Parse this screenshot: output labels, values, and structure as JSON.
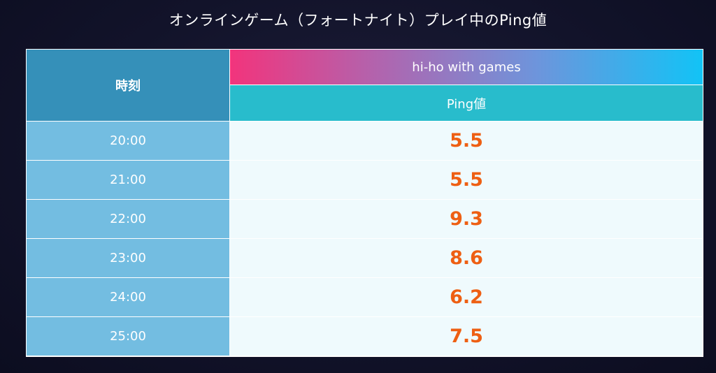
{
  "title": "オンラインゲーム（フォートナイト）プレイ中のPing値",
  "table": {
    "time_header": "時刻",
    "provider_header": "hi-ho with games",
    "metric_header": "Ping値"
  },
  "colors": {
    "value_text": "#ee5f13",
    "time_column": "#73bde1",
    "time_header": "#3590b9",
    "metric_header": "#28bccc",
    "provider_gradient": [
      "#f2347c",
      "#12c3f6"
    ]
  },
  "chart_data": {
    "type": "table",
    "title": "オンラインゲーム（フォートナイト）プレイ中のPing値",
    "columns": [
      "時刻",
      "hi-ho with games Ping値"
    ],
    "categories": [
      "20:00",
      "21:00",
      "22:00",
      "23:00",
      "24:00",
      "25:00"
    ],
    "series": [
      {
        "name": "hi-ho with games",
        "values": [
          5.5,
          5.5,
          9.3,
          8.6,
          6.2,
          7.5
        ]
      }
    ],
    "value_labels": [
      "5.5",
      "5.5",
      "9.3",
      "8.6",
      "6.2",
      "7.5"
    ]
  }
}
